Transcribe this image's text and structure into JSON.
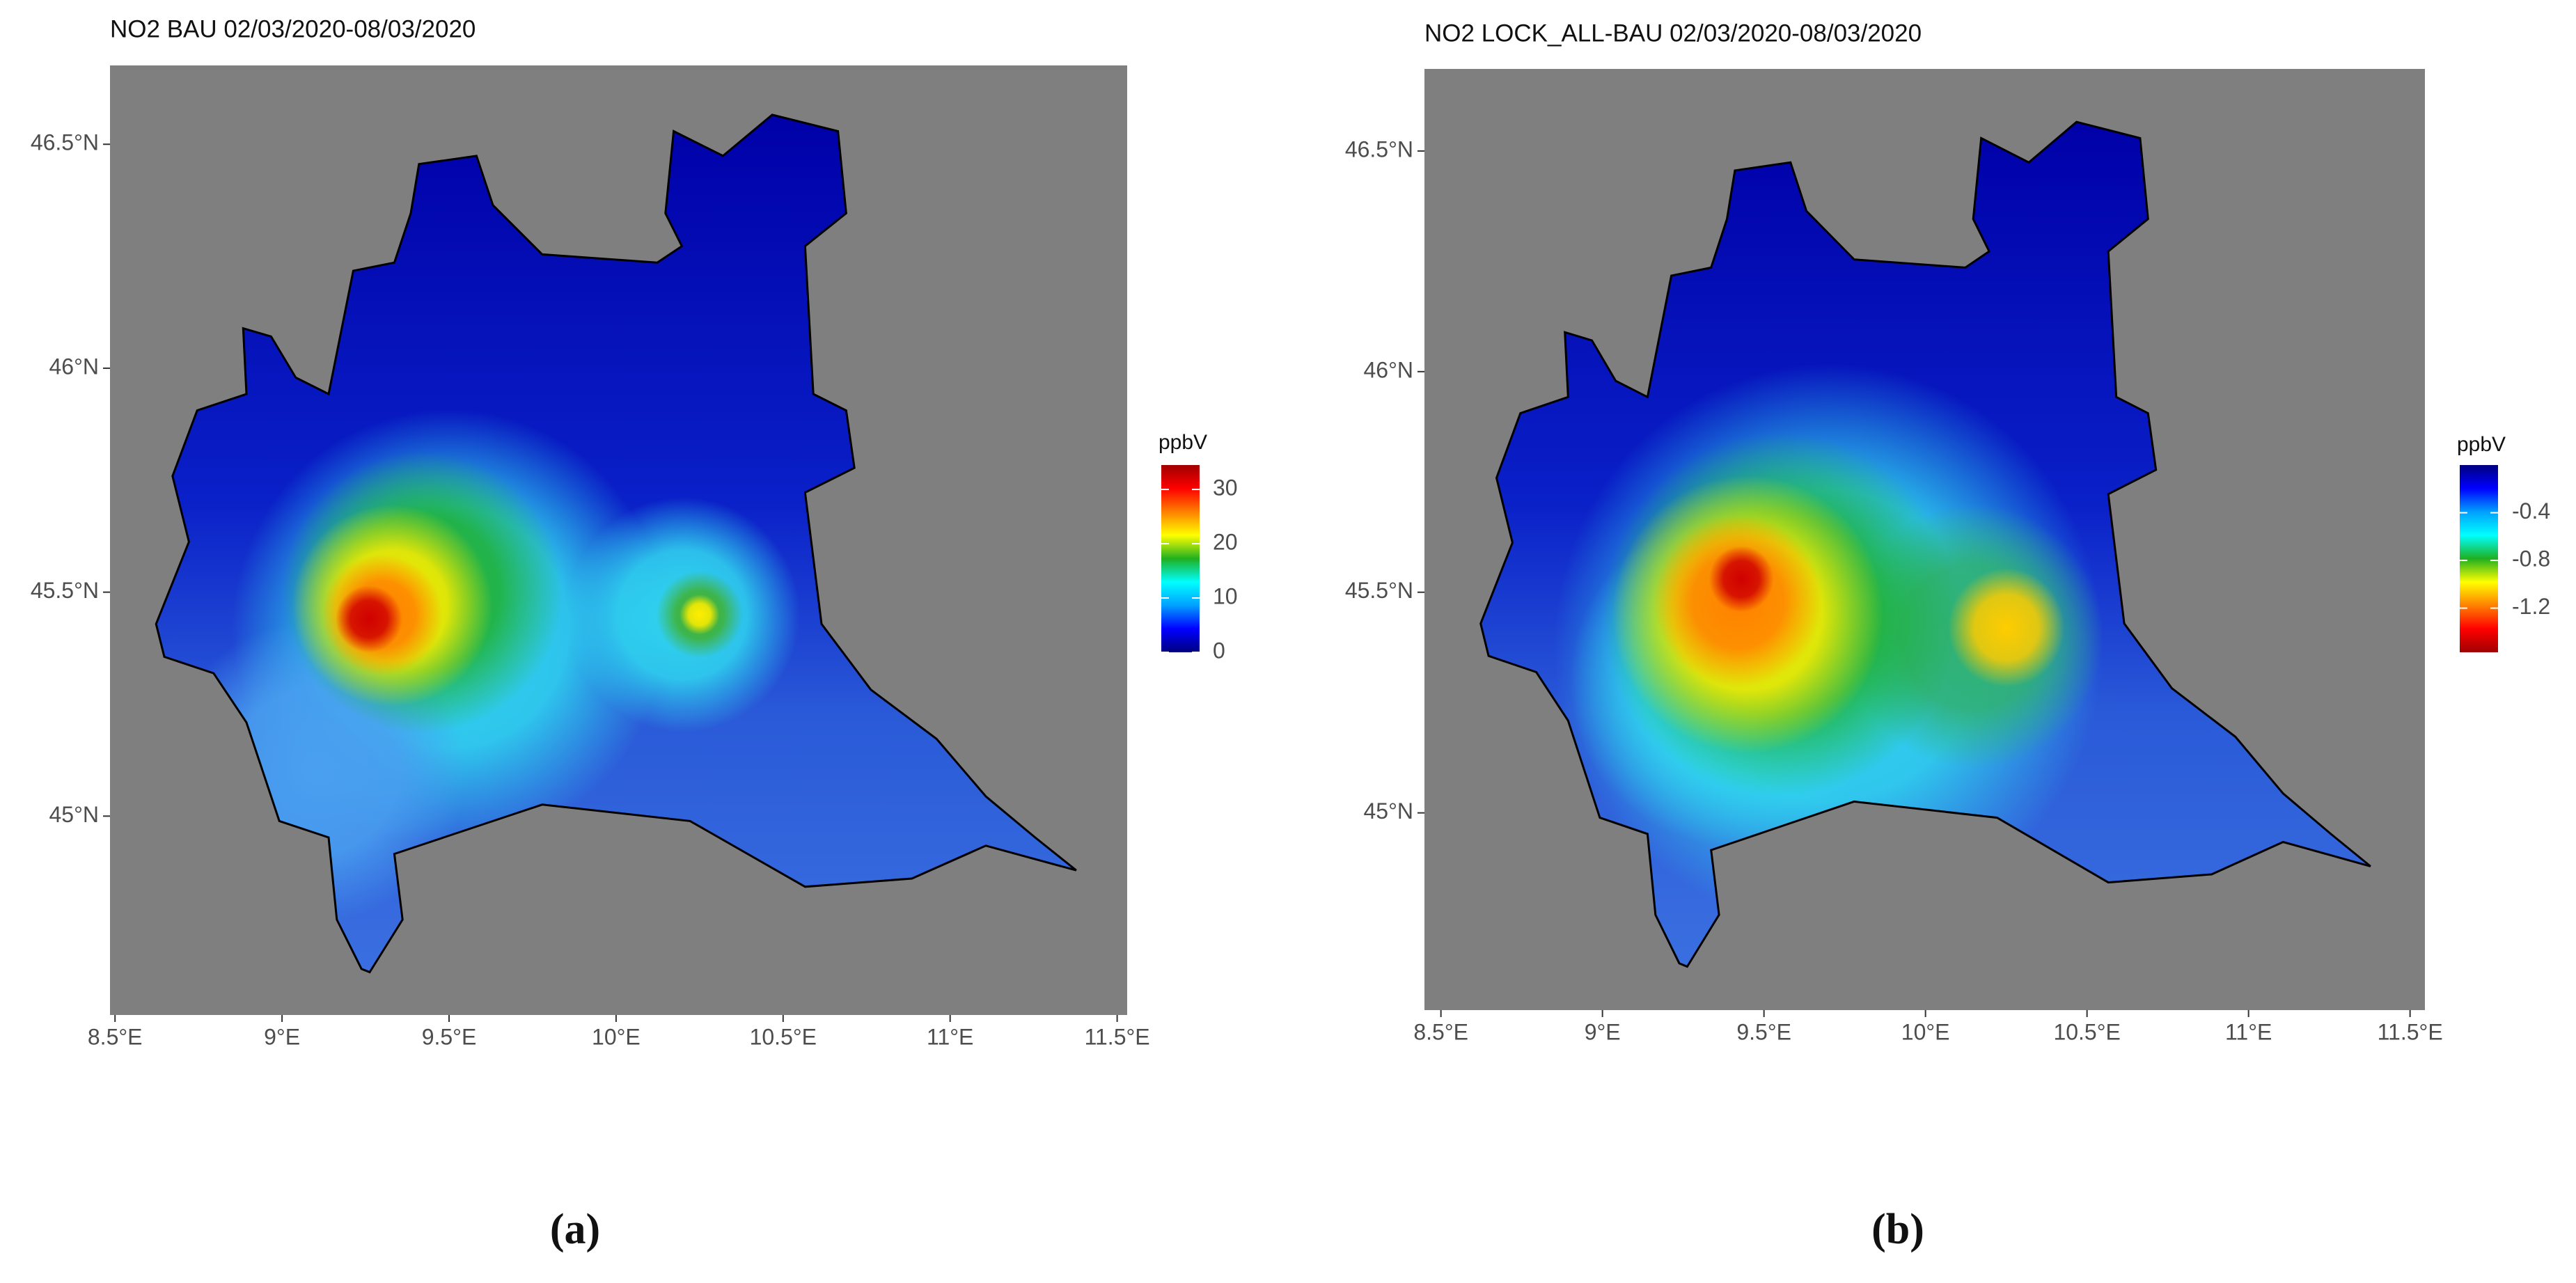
{
  "panels": [
    {
      "title": "NO2 BAU 02/03/2020-08/03/2020",
      "background": "#7f7f7f",
      "xlim": [
        8.485,
        11.53
      ],
      "xticks": [
        {
          "value": 8.5,
          "label": "8.5°E"
        },
        {
          "value": 9,
          "label": "9°E"
        },
        {
          "value": 9.5,
          "label": "9.5°E"
        },
        {
          "value": 10,
          "label": "10°E"
        },
        {
          "value": 10.5,
          "label": "10.5°E"
        },
        {
          "value": 11,
          "label": "11°E"
        },
        {
          "value": 11.5,
          "label": "11.5°E"
        }
      ],
      "ylim": [
        44.556,
        46.676
      ],
      "yticks": [
        {
          "value": 45,
          "label": "45°N"
        },
        {
          "value": 45.5,
          "label": "45.5°N"
        },
        {
          "value": 46,
          "label": "46°N"
        },
        {
          "value": 46.5,
          "label": "46.5°N"
        }
      ],
      "legend": {
        "title": "ppbV",
        "lim": [
          0,
          34.5
        ],
        "ticks": [
          0,
          10,
          20,
          30
        ],
        "colors": [
          "#00007f",
          "#0000ff",
          "#00a0ff",
          "#00ffff",
          "#20b020",
          "#ffff00",
          "#ff8000",
          "#ff0000",
          "#a00000"
        ]
      },
      "caption": "(a)"
    },
    {
      "title": "NO2 LOCK_ALL-BAU 02/03/2020-08/03/2020",
      "background": "#7f7f7f",
      "xlim": [
        8.449,
        11.546
      ],
      "xticks": [
        {
          "value": 8.5,
          "label": "8.5°E"
        },
        {
          "value": 9,
          "label": "9°E"
        },
        {
          "value": 9.5,
          "label": "9.5°E"
        },
        {
          "value": 10,
          "label": "10°E"
        },
        {
          "value": 10.5,
          "label": "10.5°E"
        },
        {
          "value": 11,
          "label": "11°E"
        },
        {
          "value": 11.5,
          "label": "11.5°E"
        }
      ],
      "ylim": [
        44.553,
        46.686
      ],
      "yticks": [
        {
          "value": 45,
          "label": "45°N"
        },
        {
          "value": 45.5,
          "label": "45.5°N"
        },
        {
          "value": 46,
          "label": "46°N"
        },
        {
          "value": 46.5,
          "label": "46.5°N"
        }
      ],
      "legend": {
        "title": "ppbV",
        "lim": [
          -1.57,
          0
        ],
        "ticks": [
          -0.4,
          -0.8,
          -1.2
        ],
        "colors": [
          "#a00000",
          "#ff0000",
          "#ff8000",
          "#ffff00",
          "#20b020",
          "#00ffff",
          "#00a0ff",
          "#0000ff",
          "#00007f"
        ]
      },
      "caption": "(b)"
    }
  ]
}
